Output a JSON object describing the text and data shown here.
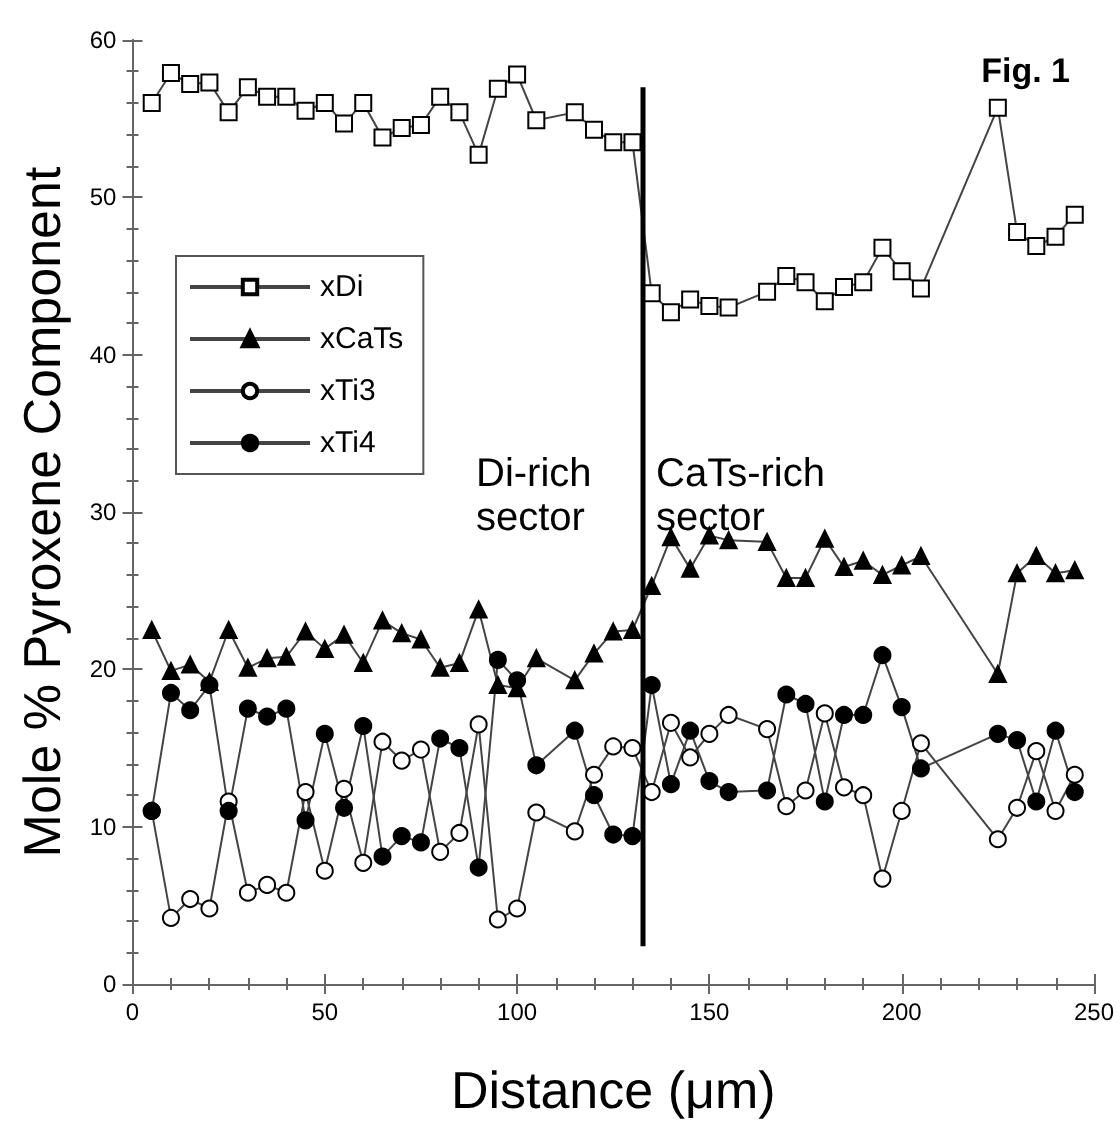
{
  "chart_data": {
    "type": "line",
    "title": "Fig. 1",
    "xlabel": "Distance (μm)",
    "ylabel": "Mole % Pyroxene Component",
    "x": [
      5,
      10,
      15,
      20,
      25,
      30,
      35,
      40,
      45,
      50,
      55,
      60,
      65,
      70,
      75,
      80,
      85,
      90,
      95,
      100,
      105,
      115,
      120,
      125,
      130,
      135,
      140,
      145,
      150,
      155,
      165,
      170,
      175,
      180,
      185,
      190,
      195,
      200,
      205,
      225,
      230,
      235,
      240,
      245
    ],
    "series": [
      {
        "name": "xDi",
        "color": "#ffffff",
        "marker": "square",
        "values": [
          56.0,
          57.9,
          57.2,
          57.3,
          55.4,
          57.0,
          56.4,
          56.4,
          55.5,
          56.0,
          54.7,
          56.0,
          53.8,
          54.4,
          54.6,
          56.4,
          55.4,
          52.7,
          56.9,
          57.8,
          54.9,
          55.4,
          54.3,
          53.5,
          53.5,
          43.9,
          42.7,
          43.5,
          43.1,
          43.0,
          44.0,
          45.0,
          44.6,
          43.4,
          44.3,
          44.6,
          46.8,
          45.3,
          44.2,
          55.7,
          47.8,
          46.9,
          47.5,
          48.9
        ]
      },
      {
        "name": "xCaTs",
        "color": "#000000",
        "marker": "triangle",
        "values": [
          22.5,
          19.9,
          20.3,
          19.2,
          22.5,
          20.1,
          20.7,
          20.8,
          22.4,
          21.3,
          22.2,
          20.4,
          23.1,
          22.3,
          21.9,
          20.1,
          20.4,
          23.8,
          19.0,
          18.8,
          20.7,
          19.3,
          21.0,
          22.4,
          22.5,
          25.3,
          28.4,
          26.4,
          28.5,
          28.2,
          28.1,
          25.8,
          25.8,
          28.3,
          26.5,
          26.9,
          26.0,
          26.6,
          27.2,
          19.7,
          26.1,
          27.2,
          26.1,
          26.3
        ]
      },
      {
        "name": "xTi3",
        "color": "#ffffff",
        "marker": "circle",
        "values": [
          11.0,
          4.2,
          5.4,
          4.8,
          11.6,
          5.8,
          6.3,
          5.8,
          12.2,
          7.2,
          12.4,
          7.7,
          15.4,
          14.2,
          14.9,
          8.4,
          9.6,
          16.5,
          4.1,
          4.8,
          10.9,
          9.7,
          13.3,
          15.1,
          15.0,
          12.2,
          16.6,
          14.4,
          15.9,
          17.1,
          16.2,
          11.3,
          12.3,
          17.2,
          12.5,
          12.0,
          6.7,
          11.0,
          15.3,
          9.2,
          11.2,
          14.8,
          11.0,
          13.3
        ]
      },
      {
        "name": "xTi4",
        "color": "#000000",
        "marker": "circle",
        "values": [
          11.0,
          18.5,
          17.4,
          19.0,
          11.0,
          17.5,
          17.0,
          17.5,
          10.4,
          15.9,
          11.2,
          16.4,
          8.1,
          9.4,
          9.0,
          15.6,
          15.0,
          7.4,
          20.6,
          19.3,
          13.9,
          16.1,
          12.0,
          9.5,
          9.4,
          19.0,
          12.7,
          16.1,
          12.9,
          12.2,
          12.3,
          18.4,
          17.8,
          11.6,
          17.1,
          17.1,
          20.9,
          17.6,
          13.7,
          15.9,
          15.5,
          11.6,
          16.1,
          12.2
        ]
      }
    ],
    "annotations": [
      "Di-rich\nsector",
      "CaTs-rich\nsector"
    ],
    "ref_lines": [
      {
        "axis": "x",
        "value": 132.5,
        "color": "#000000"
      }
    ],
    "xlim": [
      0,
      250
    ],
    "xticks": [
      0,
      50,
      100,
      150,
      200,
      250
    ],
    "ylim": [
      0,
      60
    ],
    "yticks": [
      0,
      10,
      20,
      30,
      40,
      50,
      60
    ],
    "grid": false,
    "legend": "left",
    "line_style": "solid"
  }
}
